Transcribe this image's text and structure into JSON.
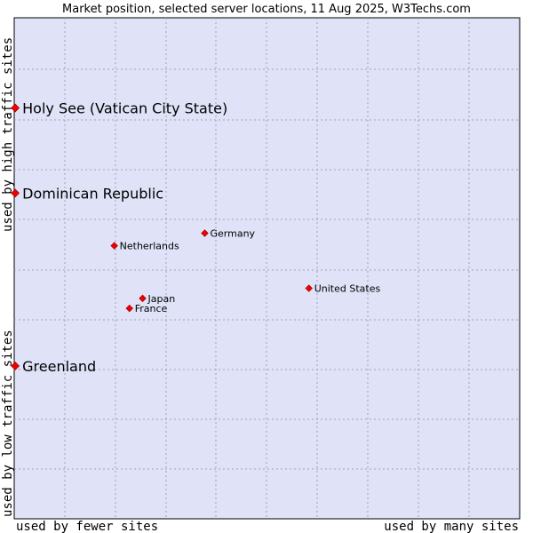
{
  "chart_data": {
    "type": "scatter",
    "title": "Market position, selected server locations, 11 Aug 2025, W3Techs.com",
    "xlabel_low": "used by fewer sites",
    "xlabel_high": "used by many sites",
    "ylabel_low": "used by low traffic sites",
    "ylabel_high": "used by high traffic sites",
    "xlim": [
      0,
      100
    ],
    "ylim": [
      0,
      100
    ],
    "grid": true,
    "point_color": "#ee0000",
    "points": [
      {
        "name": "Holy See (Vatican City State)",
        "x": 0.2,
        "y": 82,
        "emphasis": true
      },
      {
        "name": "Dominican Republic",
        "x": 0.2,
        "y": 65,
        "emphasis": true
      },
      {
        "name": "Greenland",
        "x": 0.2,
        "y": 30.5,
        "emphasis": true
      },
      {
        "name": "Germany",
        "x": 37.7,
        "y": 57,
        "emphasis": false
      },
      {
        "name": "Netherlands",
        "x": 19.8,
        "y": 54.5,
        "emphasis": false
      },
      {
        "name": "United States",
        "x": 58.3,
        "y": 46,
        "emphasis": false
      },
      {
        "name": "Japan",
        "x": 25.4,
        "y": 44,
        "emphasis": false
      },
      {
        "name": "France",
        "x": 22.8,
        "y": 42,
        "emphasis": false
      }
    ]
  }
}
